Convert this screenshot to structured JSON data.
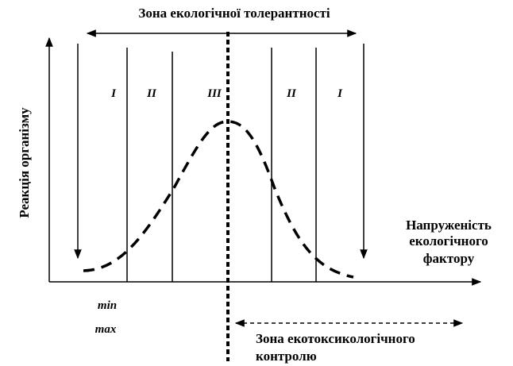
{
  "title": "Зона екологічної толерантності",
  "y_axis_label": "Реакція організму",
  "x_axis_label": [
    "Напруженість",
    "екологічного",
    "фактору"
  ],
  "zones": [
    "I",
    "II",
    "III",
    "II",
    "I"
  ],
  "min": "min",
  "max": "max",
  "control_zone": [
    "Зона екотоксикологічного",
    "контролю"
  ]
}
